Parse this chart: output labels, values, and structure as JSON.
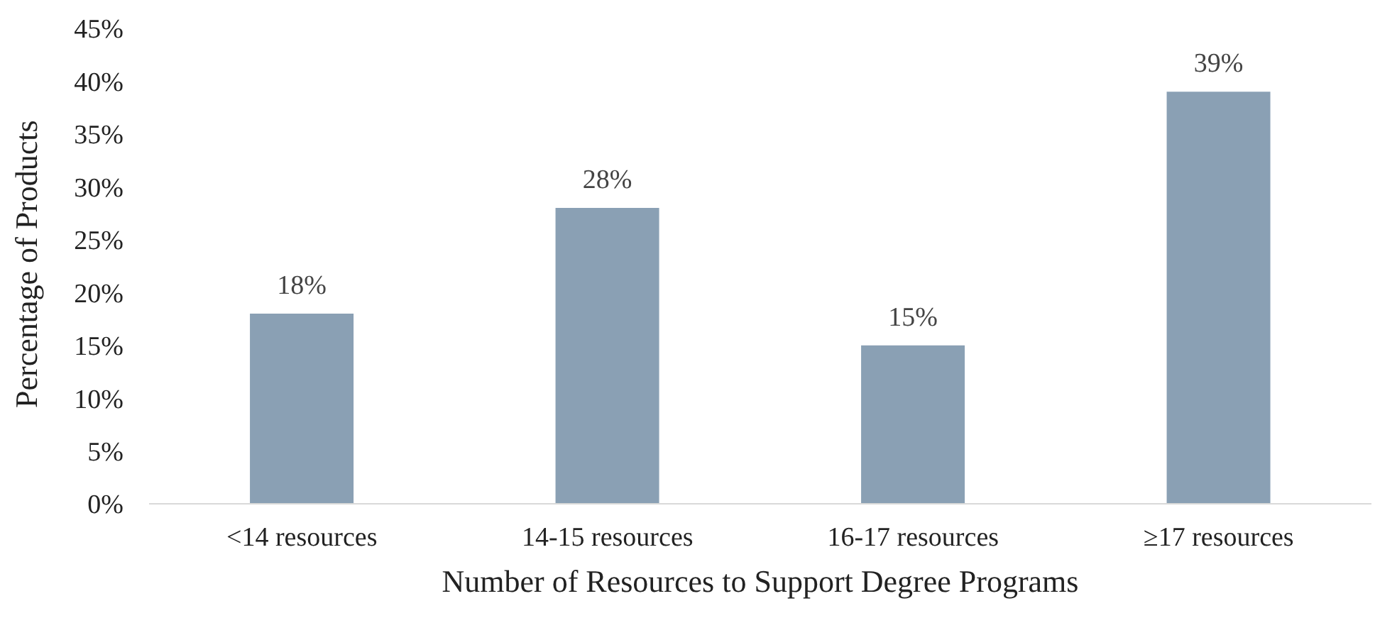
{
  "chart_data": {
    "type": "bar",
    "xlabel": "Number of Resources to Support Degree Programs",
    "ylabel": "Percentage of Products",
    "categories": [
      "<14 resources",
      "14-15 resources",
      "16-17 resources",
      "≥17 resources"
    ],
    "values": [
      18,
      28,
      15,
      39
    ],
    "color": "#8aa0b4",
    "value_labels": [
      "18%",
      "28%",
      "15%",
      "39%"
    ],
    "ylim": [
      0,
      45
    ],
    "yticks": [
      {
        "value": 0,
        "label": "0%"
      },
      {
        "value": 5,
        "label": "5%"
      },
      {
        "value": 10,
        "label": "10%"
      },
      {
        "value": 15,
        "label": "15%"
      },
      {
        "value": 20,
        "label": "20%"
      },
      {
        "value": 25,
        "label": "25%"
      },
      {
        "value": 30,
        "label": "30%"
      },
      {
        "value": 35,
        "label": "35%"
      },
      {
        "value": 40,
        "label": "40%"
      },
      {
        "value": 45,
        "label": "45%"
      }
    ],
    "grid": false,
    "legend": false
  }
}
